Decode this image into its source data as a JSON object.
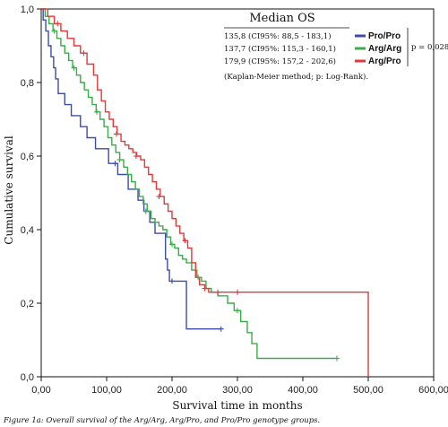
{
  "chart_data": {
    "type": "line",
    "step": true,
    "xlabel": "Survival time in months",
    "ylabel": "Cumulative survival",
    "xlim": [
      0,
      600
    ],
    "ylim": [
      0,
      1
    ],
    "x_ticks": [
      "0,00",
      "100,00",
      "200,00",
      "300,00",
      "400,00",
      "500,00",
      "600,00"
    ],
    "y_ticks": [
      "0,0",
      "0,2",
      "0,4",
      "0,6",
      "0,8",
      "1,0"
    ],
    "legend": {
      "placement": "top-right",
      "title": "Median OS",
      "rows": [
        {
          "text": "135,8 (CI95%: 88,5 - 183,1)",
          "name": "Pro/Pro"
        },
        {
          "text": "137,7 (CI95%: 115,3 - 160,1)",
          "name": "Arg/Arg"
        },
        {
          "text": "179,9 (CI95%: 157,2 - 202,6)",
          "name": "Arg/Pro"
        }
      ],
      "p_value": "p = 0,028",
      "note": "(Kaplan-Meier method; p: Log-Rank)."
    },
    "series": [
      {
        "name": "Pro/Pro",
        "color": "#3b4da8",
        "points": [
          [
            0,
            1.0
          ],
          [
            3,
            0.97
          ],
          [
            7,
            0.94
          ],
          [
            11,
            0.9
          ],
          [
            15,
            0.87
          ],
          [
            19,
            0.84
          ],
          [
            22,
            0.81
          ],
          [
            26,
            0.77
          ],
          [
            32,
            0.77
          ],
          [
            36,
            0.74
          ],
          [
            42,
            0.74
          ],
          [
            46,
            0.71
          ],
          [
            56,
            0.71
          ],
          [
            60,
            0.68
          ],
          [
            66,
            0.68
          ],
          [
            70,
            0.65
          ],
          [
            78,
            0.65
          ],
          [
            83,
            0.62
          ],
          [
            98,
            0.62
          ],
          [
            103,
            0.58
          ],
          [
            112,
            0.58
          ],
          [
            117,
            0.55
          ],
          [
            128,
            0.55
          ],
          [
            133,
            0.51
          ],
          [
            143,
            0.51
          ],
          [
            148,
            0.48
          ],
          [
            152,
            0.48
          ],
          [
            157,
            0.45
          ],
          [
            162,
            0.45
          ],
          [
            166,
            0.42
          ],
          [
            170,
            0.42
          ],
          [
            174,
            0.39
          ],
          [
            185,
            0.39
          ],
          [
            190,
            0.32
          ],
          [
            193,
            0.29
          ],
          [
            196,
            0.26
          ],
          [
            210,
            0.26
          ],
          [
            222,
            0.13
          ],
          [
            275,
            0.13
          ]
        ],
        "censored": [
          [
            113,
            0.58
          ],
          [
            200,
            0.26
          ],
          [
            275,
            0.13
          ]
        ]
      },
      {
        "name": "Arg/Arg",
        "color": "#3cab4a",
        "points": [
          [
            0,
            1.0
          ],
          [
            6,
            0.98
          ],
          [
            12,
            0.96
          ],
          [
            18,
            0.94
          ],
          [
            24,
            0.92
          ],
          [
            30,
            0.9
          ],
          [
            36,
            0.88
          ],
          [
            42,
            0.86
          ],
          [
            48,
            0.84
          ],
          [
            54,
            0.82
          ],
          [
            60,
            0.8
          ],
          [
            66,
            0.78
          ],
          [
            72,
            0.76
          ],
          [
            78,
            0.74
          ],
          [
            84,
            0.72
          ],
          [
            90,
            0.7
          ],
          [
            96,
            0.68
          ],
          [
            102,
            0.65
          ],
          [
            108,
            0.63
          ],
          [
            114,
            0.61
          ],
          [
            120,
            0.59
          ],
          [
            126,
            0.57
          ],
          [
            132,
            0.55
          ],
          [
            138,
            0.53
          ],
          [
            144,
            0.51
          ],
          [
            150,
            0.49
          ],
          [
            156,
            0.47
          ],
          [
            162,
            0.45
          ],
          [
            168,
            0.43
          ],
          [
            174,
            0.42
          ],
          [
            180,
            0.41
          ],
          [
            186,
            0.4
          ],
          [
            192,
            0.38
          ],
          [
            198,
            0.36
          ],
          [
            204,
            0.35
          ],
          [
            210,
            0.33
          ],
          [
            216,
            0.32
          ],
          [
            222,
            0.31
          ],
          [
            230,
            0.29
          ],
          [
            238,
            0.27
          ],
          [
            245,
            0.26
          ],
          [
            252,
            0.24
          ],
          [
            260,
            0.23
          ],
          [
            270,
            0.22
          ],
          [
            280,
            0.22
          ],
          [
            285,
            0.2
          ],
          [
            295,
            0.18
          ],
          [
            305,
            0.15
          ],
          [
            315,
            0.12
          ],
          [
            322,
            0.09
          ],
          [
            330,
            0.05
          ],
          [
            452,
            0.05
          ]
        ],
        "censored": [
          [
            20,
            0.94
          ],
          [
            50,
            0.84
          ],
          [
            85,
            0.72
          ],
          [
            120,
            0.59
          ],
          [
            160,
            0.45
          ],
          [
            200,
            0.36
          ],
          [
            240,
            0.27
          ],
          [
            300,
            0.18
          ],
          [
            452,
            0.05
          ]
        ]
      },
      {
        "name": "Arg/Pro",
        "color": "#e03a3a",
        "points": [
          [
            0,
            1.0
          ],
          [
            10,
            0.98
          ],
          [
            20,
            0.96
          ],
          [
            30,
            0.94
          ],
          [
            40,
            0.92
          ],
          [
            50,
            0.9
          ],
          [
            60,
            0.88
          ],
          [
            70,
            0.85
          ],
          [
            80,
            0.82
          ],
          [
            86,
            0.78
          ],
          [
            92,
            0.75
          ],
          [
            98,
            0.72
          ],
          [
            104,
            0.7
          ],
          [
            110,
            0.68
          ],
          [
            116,
            0.66
          ],
          [
            122,
            0.64
          ],
          [
            128,
            0.63
          ],
          [
            134,
            0.62
          ],
          [
            140,
            0.61
          ],
          [
            146,
            0.6
          ],
          [
            152,
            0.59
          ],
          [
            158,
            0.57
          ],
          [
            164,
            0.55
          ],
          [
            170,
            0.53
          ],
          [
            176,
            0.51
          ],
          [
            182,
            0.49
          ],
          [
            188,
            0.47
          ],
          [
            194,
            0.45
          ],
          [
            200,
            0.43
          ],
          [
            206,
            0.41
          ],
          [
            212,
            0.39
          ],
          [
            218,
            0.37
          ],
          [
            224,
            0.35
          ],
          [
            230,
            0.31
          ],
          [
            236,
            0.27
          ],
          [
            242,
            0.25
          ],
          [
            250,
            0.24
          ],
          [
            256,
            0.23
          ],
          [
            500,
            0.23
          ],
          [
            500,
            0.0
          ]
        ],
        "censored": [
          [
            25,
            0.96
          ],
          [
            65,
            0.88
          ],
          [
            115,
            0.66
          ],
          [
            145,
            0.6
          ],
          [
            180,
            0.49
          ],
          [
            220,
            0.37
          ],
          [
            250,
            0.24
          ],
          [
            270,
            0.23
          ],
          [
            300,
            0.23
          ]
        ]
      }
    ]
  },
  "caption": "Figure 1a: Overall survival of the Arg/Arg, Arg/Pro, and Pro/Pro genotype groups."
}
